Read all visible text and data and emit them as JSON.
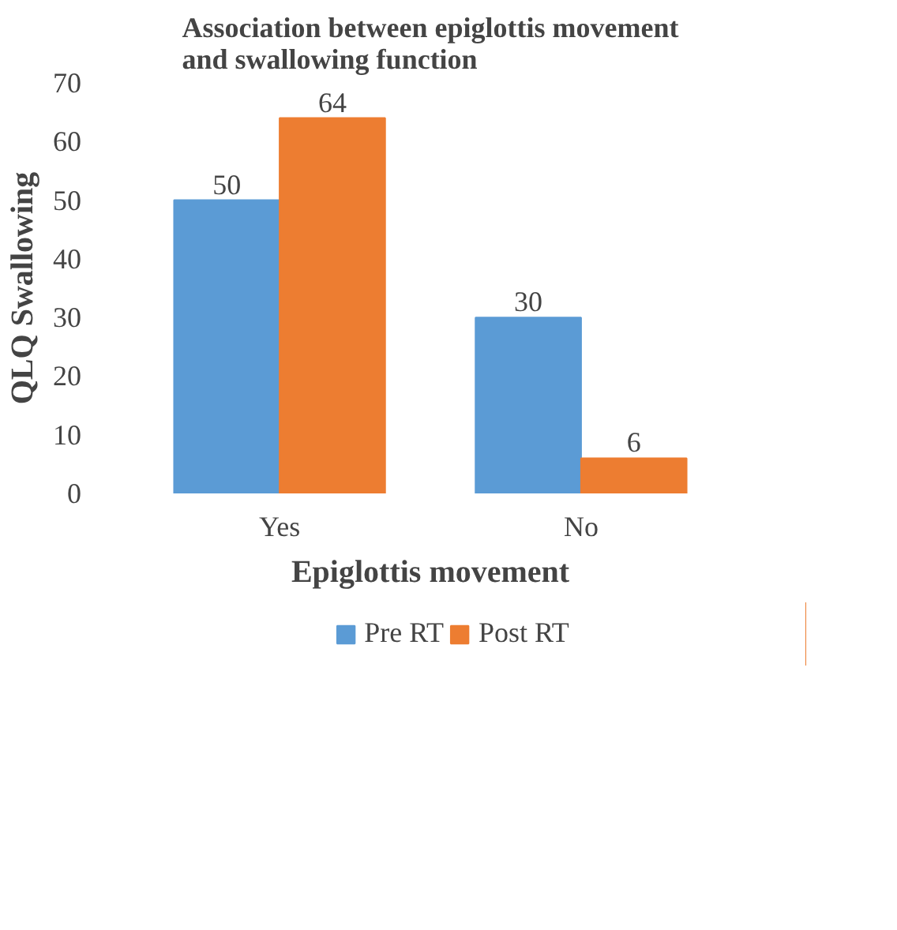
{
  "chart_data": {
    "type": "bar",
    "title": "Association between epiglottis movement and swallowing function",
    "xlabel": "Epiglottis movement",
    "ylabel": "QLQ Swallowing",
    "categories": [
      "Yes",
      "No"
    ],
    "series": [
      {
        "name": "Pre RT",
        "color": "#5b9bd5",
        "values": [
          50,
          30
        ]
      },
      {
        "name": "Post RT",
        "color": "#ed7d31",
        "values": [
          64,
          6
        ]
      }
    ],
    "ylim": [
      0,
      70
    ],
    "yticks": [
      0,
      10,
      20,
      30,
      40,
      50,
      60,
      70
    ],
    "data_labels": true,
    "grid": false,
    "legend": "bottom"
  }
}
